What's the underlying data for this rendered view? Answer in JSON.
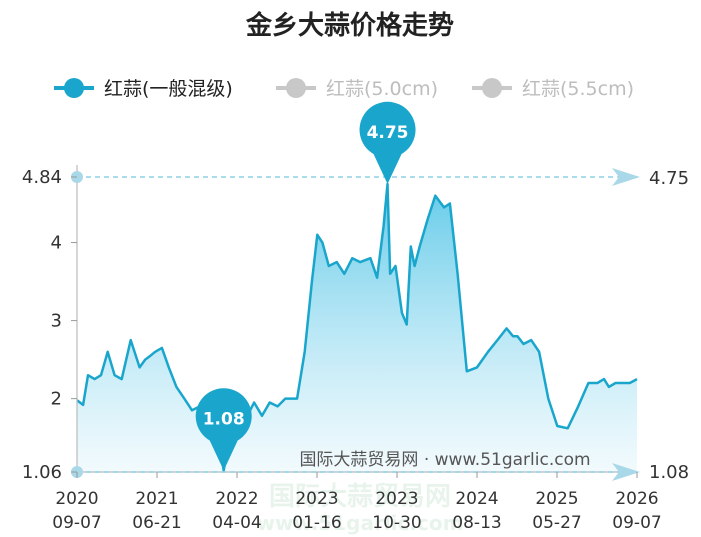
{
  "chart_data": {
    "type": "area",
    "title": "金乡大蒜价格走势",
    "y_ticks": [
      "4",
      "3",
      "2"
    ],
    "y_range_labels": {
      "max": "4.84",
      "min": "1.06"
    },
    "ylim": [
      1.06,
      4.84
    ],
    "x_ticks": [
      {
        "year": "2020",
        "date": "09-07"
      },
      {
        "year": "2021",
        "date": "06-21"
      },
      {
        "year": "2022",
        "date": "04-04"
      },
      {
        "year": "2023",
        "date": "01-16"
      },
      {
        "year": "2023",
        "date": "10-30"
      },
      {
        "year": "2024",
        "date": "08-13"
      },
      {
        "year": "2025",
        "date": "05-27"
      },
      {
        "year": "2026",
        "date": "09-07"
      }
    ],
    "series": [
      {
        "name": "红蒜(一般混级)",
        "active": true,
        "x": [
          "2020-09-07",
          "2020-10-01",
          "2020-10-20",
          "2020-11-15",
          "2020-12-10",
          "2021-01-05",
          "2021-02-01",
          "2021-03-01",
          "2021-04-05",
          "2021-05-10",
          "2021-06-01",
          "2021-06-21",
          "2021-07-10",
          "2021-08-05",
          "2021-09-01",
          "2021-10-01",
          "2021-11-01",
          "2021-12-01",
          "2022-01-01",
          "2022-02-01",
          "2022-03-01",
          "2022-04-04",
          "2022-05-01",
          "2022-06-01",
          "2022-07-01",
          "2022-08-01",
          "2022-09-01",
          "2022-10-01",
          "2022-11-01",
          "2022-12-01",
          "2023-01-16",
          "2023-02-15",
          "2023-03-15",
          "2023-04-05",
          "2023-04-25",
          "2023-05-20",
          "2023-06-20",
          "2023-07-20",
          "2023-08-20",
          "2023-09-20",
          "2023-10-30",
          "2023-11-25",
          "2023-12-20",
          "2024-01-05",
          "2024-01-15",
          "2024-02-05",
          "2024-03-01",
          "2024-03-20",
          "2024-04-05",
          "2024-04-20",
          "2024-05-10",
          "2024-06-10",
          "2024-07-10",
          "2024-08-13",
          "2024-09-05",
          "2024-10-05",
          "2024-11-10",
          "2024-12-20",
          "2025-02-01",
          "2025-03-10",
          "2025-04-15",
          "2025-05-10",
          "2025-05-27",
          "2025-06-20",
          "2025-07-20",
          "2025-08-20",
          "2025-09-25",
          "2025-10-30",
          "2025-12-10",
          "2026-01-20",
          "2026-03-01",
          "2026-04-05",
          "2026-05-01",
          "2026-05-20",
          "2026-06-15",
          "2026-07-10",
          "2026-08-10",
          "2026-09-07"
        ],
        "values": [
          1.98,
          1.92,
          2.3,
          2.25,
          2.3,
          2.6,
          2.3,
          2.25,
          2.75,
          2.4,
          2.5,
          2.55,
          2.6,
          2.65,
          2.4,
          2.15,
          2.0,
          1.85,
          1.9,
          1.95,
          1.8,
          1.08,
          1.6,
          1.8,
          1.75,
          1.95,
          1.78,
          1.95,
          1.9,
          2.0,
          2.0,
          2.6,
          3.5,
          4.1,
          4.0,
          3.7,
          3.75,
          3.6,
          3.8,
          3.75,
          3.8,
          3.55,
          4.2,
          4.75,
          3.6,
          3.7,
          3.1,
          2.95,
          3.95,
          3.7,
          3.95,
          4.3,
          4.6,
          4.45,
          4.5,
          3.6,
          2.35,
          2.4,
          2.6,
          2.75,
          2.9,
          2.8,
          2.8,
          2.7,
          2.75,
          2.6,
          2.0,
          1.65,
          1.62,
          1.9,
          2.2,
          2.2,
          2.25,
          2.15,
          2.2,
          2.2,
          2.2,
          2.25
        ]
      },
      {
        "name": "红蒜(5.0cm)",
        "active": false,
        "values": []
      },
      {
        "name": "红蒜(5.5cm)",
        "active": false,
        "values": []
      }
    ],
    "annotations": {
      "max": {
        "label": "4.75",
        "date": "2024-01-05",
        "value": 4.75
      },
      "min": {
        "label": "1.08",
        "date": "2022-04-04",
        "value": 1.08
      }
    },
    "right_labels": {
      "top": "4.75",
      "bottom": "1.08"
    },
    "watermark": "国际大蒜贸易网 · www.51garlic.com",
    "ghost_watermark": {
      "cn": "国际大蒜贸易网",
      "en": "www.51garlic.com"
    },
    "colors": {
      "line": "#1aa6cc",
      "area_top": "#5cc8e8",
      "area_bottom": "#e9f7fc",
      "inactive": "#bdbdbd",
      "dash": "#8fd1e6"
    },
    "grid": false,
    "legend_position": "top-left"
  }
}
